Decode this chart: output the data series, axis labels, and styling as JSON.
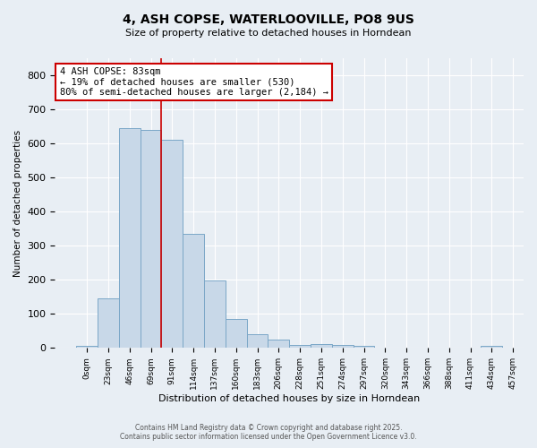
{
  "title": "4, ASH COPSE, WATERLOOVILLE, PO8 9US",
  "subtitle": "Size of property relative to detached houses in Horndean",
  "xlabel": "Distribution of detached houses by size in Horndean",
  "ylabel": "Number of detached properties",
  "bar_color": "#c8d8e8",
  "bar_edge_color": "#7ba7c7",
  "bar_values": [
    5,
    145,
    645,
    640,
    610,
    335,
    198,
    85,
    40,
    25,
    10,
    12,
    8,
    5,
    0,
    0,
    0,
    0,
    0,
    5
  ],
  "bin_labels": [
    "0sqm",
    "23sqm",
    "46sqm",
    "69sqm",
    "91sqm",
    "114sqm",
    "137sqm",
    "160sqm",
    "183sqm",
    "206sqm",
    "228sqm",
    "251sqm",
    "274sqm",
    "297sqm",
    "320sqm",
    "343sqm",
    "366sqm",
    "388sqm",
    "411sqm",
    "434sqm",
    "457sqm"
  ],
  "red_line_x": 3.5,
  "annotation_text": "4 ASH COPSE: 83sqm\n← 19% of detached houses are smaller (530)\n80% of semi-detached houses are larger (2,184) →",
  "annotation_box_color": "#ffffff",
  "annotation_box_edgecolor": "#cc0000",
  "footer_line1": "Contains HM Land Registry data © Crown copyright and database right 2025.",
  "footer_line2": "Contains public sector information licensed under the Open Government Licence v3.0.",
  "background_color": "#e8eef4",
  "plot_background_color": "#e8eef4",
  "ylim": [
    0,
    850
  ],
  "grid_color": "#ffffff",
  "title_fontsize": 10,
  "subtitle_fontsize": 8
}
